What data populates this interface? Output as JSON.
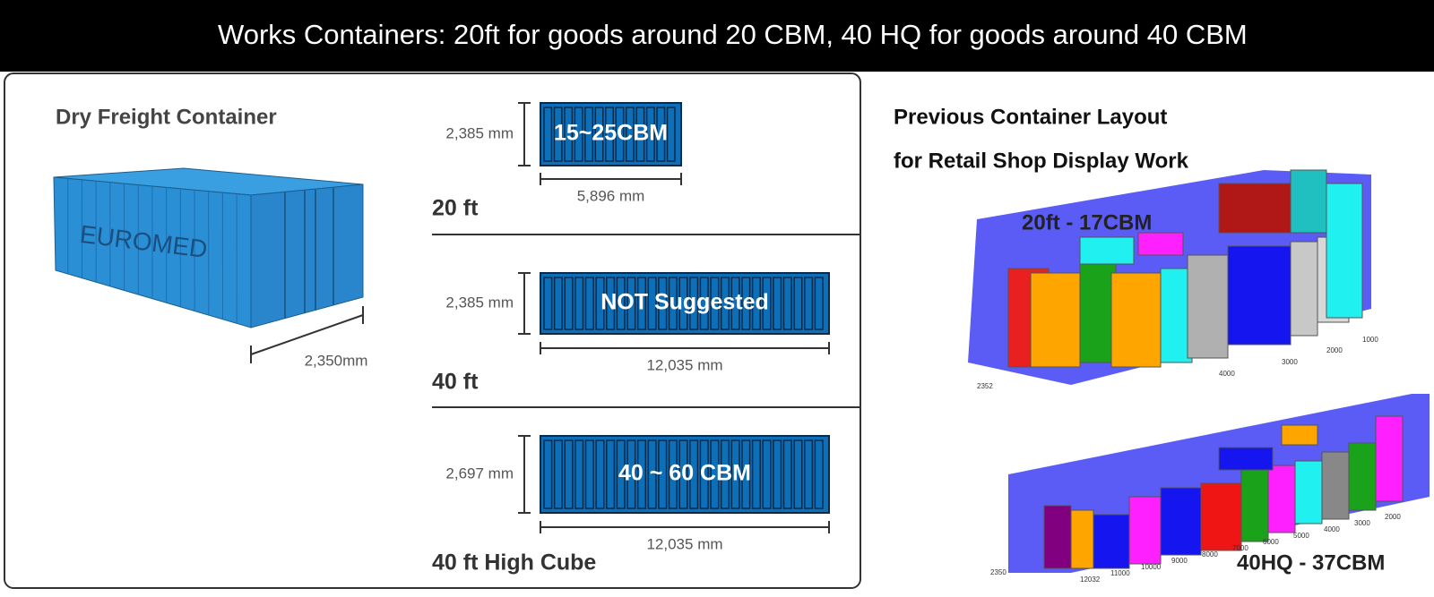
{
  "header": {
    "title": "Works Containers: 20ft for goods around 20 CBM, 40 HQ for goods around 40 CBM"
  },
  "left_panel": {
    "title": "Dry Freight Container",
    "brand": "EUROMED",
    "width_label": "2,350mm"
  },
  "containers": [
    {
      "name": "20 ft",
      "height": "2,385 mm",
      "length": "5,896 mm",
      "capacity": "15~25CBM"
    },
    {
      "name": "40 ft",
      "height": "2,385 mm",
      "length": "12,035 mm",
      "capacity": "NOT Suggested"
    },
    {
      "name": "40 ft High Cube",
      "height": "2,697 mm",
      "length": "12,035 mm",
      "capacity": "40 ~ 60 CBM"
    }
  ],
  "right_panel": {
    "title_line1": "Previous Container Layout",
    "title_line2": "for Retail Shop Display Work",
    "layout_20ft": {
      "label": "20ft - 17CBM",
      "axis_labels": [
        "1000",
        "2000",
        "3000",
        "4000",
        "2352"
      ]
    },
    "layout_40hq": {
      "label": "40HQ - 37CBM",
      "axis_labels": [
        "2000",
        "3000",
        "4000",
        "5000",
        "6000",
        "7000",
        "8000",
        "9000",
        "10000",
        "11000",
        "12032",
        "2350"
      ]
    }
  }
}
